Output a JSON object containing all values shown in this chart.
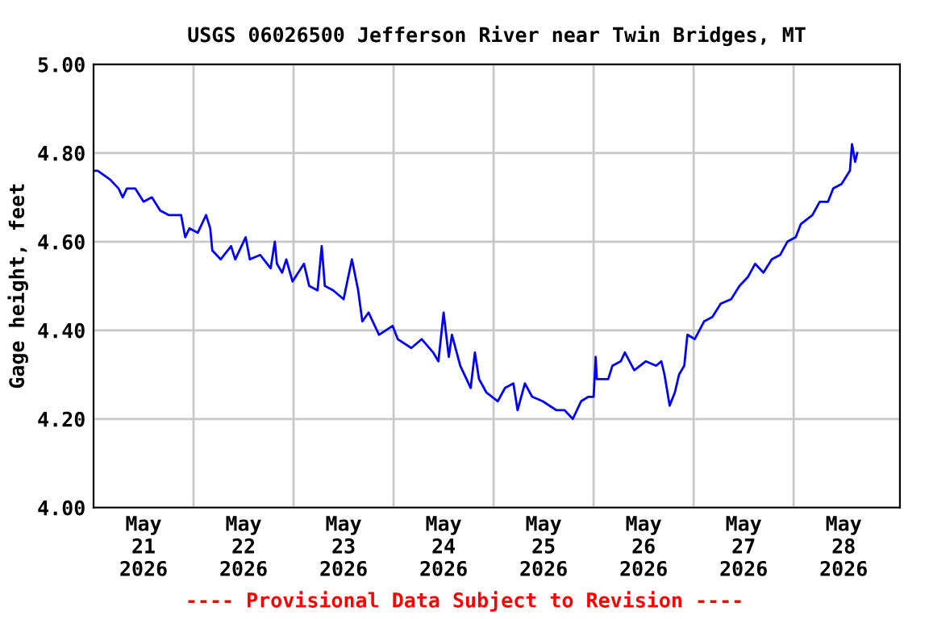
{
  "chart_data": {
    "type": "line",
    "title": "USGS 06026500 Jefferson River near Twin Bridges, MT",
    "ylabel": "Gage height, feet",
    "annotations": [
      "---- Provisional Data Subject to Revision ----"
    ],
    "series": [
      {
        "color": "#0000ff",
        "x": [
          "2026-05-21T00:00",
          "2026-05-21T01:00",
          "2026-05-21T04:00",
          "2026-05-21T06:00",
          "2026-05-21T07:00",
          "2026-05-21T08:00",
          "2026-05-21T10:00",
          "2026-05-21T12:00",
          "2026-05-21T14:00",
          "2026-05-21T16:00",
          "2026-05-21T18:00",
          "2026-05-21T21:00",
          "2026-05-21T22:00",
          "2026-05-21T23:00",
          "2026-05-22T01:00",
          "2026-05-22T03:00",
          "2026-05-22T04:00",
          "2026-05-22T04:30",
          "2026-05-22T06:30",
          "2026-05-22T09:00",
          "2026-05-22T10:00",
          "2026-05-22T12:30",
          "2026-05-22T13:30",
          "2026-05-22T16:00",
          "2026-05-22T18:30",
          "2026-05-22T19:30",
          "2026-05-22T20:00",
          "2026-05-22T21:15",
          "2026-05-22T22:15",
          "2026-05-22T23:45",
          "2026-05-23T02:30",
          "2026-05-23T03:45",
          "2026-05-23T05:45",
          "2026-05-23T06:45",
          "2026-05-23T07:30",
          "2026-05-23T09:30",
          "2026-05-23T12:00",
          "2026-05-23T14:00",
          "2026-05-23T15:30",
          "2026-05-23T16:30",
          "2026-05-23T18:00",
          "2026-05-23T20:30",
          "2026-05-23T23:45",
          "2026-05-24T01:00",
          "2026-05-24T04:15",
          "2026-05-24T06:45",
          "2026-05-24T09:30",
          "2026-05-24T10:45",
          "2026-05-24T12:00",
          "2026-05-24T13:15",
          "2026-05-24T14:00",
          "2026-05-24T16:00",
          "2026-05-24T18:30",
          "2026-05-24T19:30",
          "2026-05-24T20:30",
          "2026-05-24T22:15",
          "2026-05-25T01:00",
          "2026-05-25T02:45",
          "2026-05-25T04:45",
          "2026-05-25T05:45",
          "2026-05-25T07:30",
          "2026-05-25T09:15",
          "2026-05-25T11:45",
          "2026-05-25T15:00",
          "2026-05-25T17:00",
          "2026-05-25T19:00",
          "2026-05-25T21:00",
          "2026-05-25T22:45",
          "2026-05-26T00:00",
          "2026-05-26T00:30",
          "2026-05-26T00:45",
          "2026-05-26T03:30",
          "2026-05-26T04:30",
          "2026-05-26T06:30",
          "2026-05-26T07:30",
          "2026-05-26T09:45",
          "2026-05-26T12:30",
          "2026-05-26T15:00",
          "2026-05-26T16:15",
          "2026-05-26T17:00",
          "2026-05-26T18:15",
          "2026-05-26T19:30",
          "2026-05-26T20:30",
          "2026-05-26T21:45",
          "2026-05-26T22:30",
          "2026-05-27T00:15",
          "2026-05-27T02:30",
          "2026-05-27T04:30",
          "2026-05-27T06:30",
          "2026-05-27T09:00",
          "2026-05-27T11:00",
          "2026-05-27T13:00",
          "2026-05-27T14:45",
          "2026-05-27T16:45",
          "2026-05-27T18:45",
          "2026-05-27T20:45",
          "2026-05-27T22:30",
          "2026-05-28T00:30",
          "2026-05-28T01:45",
          "2026-05-28T04:30",
          "2026-05-28T06:15",
          "2026-05-28T08:15",
          "2026-05-28T09:30",
          "2026-05-28T11:30",
          "2026-05-28T13:30",
          "2026-05-28T14:00",
          "2026-05-28T14:45",
          "2026-05-28T15:15"
        ],
        "values": [
          4.76,
          4.76,
          4.74,
          4.72,
          4.7,
          4.72,
          4.72,
          4.69,
          4.7,
          4.67,
          4.66,
          4.66,
          4.61,
          4.63,
          4.62,
          4.66,
          4.63,
          4.58,
          4.56,
          4.59,
          4.56,
          4.61,
          4.56,
          4.57,
          4.54,
          4.6,
          4.55,
          4.53,
          4.56,
          4.51,
          4.55,
          4.5,
          4.49,
          4.59,
          4.5,
          4.49,
          4.47,
          4.56,
          4.49,
          4.42,
          4.44,
          4.39,
          4.41,
          4.38,
          4.36,
          4.38,
          4.35,
          4.33,
          4.44,
          4.34,
          4.39,
          4.32,
          4.27,
          4.35,
          4.29,
          4.26,
          4.24,
          4.27,
          4.28,
          4.22,
          4.28,
          4.25,
          4.24,
          4.22,
          4.22,
          4.2,
          4.24,
          4.25,
          4.25,
          4.34,
          4.29,
          4.29,
          4.32,
          4.33,
          4.35,
          4.31,
          4.33,
          4.32,
          4.33,
          4.3,
          4.23,
          4.26,
          4.3,
          4.32,
          4.39,
          4.38,
          4.42,
          4.43,
          4.46,
          4.47,
          4.5,
          4.52,
          4.55,
          4.53,
          4.56,
          4.57,
          4.6,
          4.61,
          4.64,
          4.66,
          4.69,
          4.69,
          4.72,
          4.73,
          4.76,
          4.82,
          4.78,
          4.8
        ]
      }
    ],
    "xlim": [
      "2026-05-21T00:00",
      "2026-05-29T01:30"
    ],
    "xticks": [
      {
        "value": "2026-05-21T12:00",
        "label": "May\n21\n2026"
      },
      {
        "value": "2026-05-22T00:00",
        "label": null
      },
      {
        "value": "2026-05-22T12:00",
        "label": "May\n22\n2026"
      },
      {
        "value": "2026-05-23T00:00",
        "label": null
      },
      {
        "value": "2026-05-23T12:00",
        "label": "May\n23\n2026"
      },
      {
        "value": "2026-05-24T00:00",
        "label": null
      },
      {
        "value": "2026-05-24T12:00",
        "label": "May\n24\n2026"
      },
      {
        "value": "2026-05-25T00:00",
        "label": null
      },
      {
        "value": "2026-05-25T12:00",
        "label": "May\n25\n2026"
      },
      {
        "value": "2026-05-26T00:00",
        "label": null
      },
      {
        "value": "2026-05-26T12:00",
        "label": "May\n26\n2026"
      },
      {
        "value": "2026-05-27T00:00",
        "label": null
      },
      {
        "value": "2026-05-27T12:00",
        "label": "May\n27\n2026"
      },
      {
        "value": "2026-05-28T00:00",
        "label": null
      },
      {
        "value": "2026-05-28T12:00",
        "label": "May\n28\n2026"
      }
    ],
    "ylim": [
      4.0,
      5.0
    ],
    "yticks": [
      {
        "value": 4.0,
        "label": "4.00"
      },
      {
        "value": 4.2,
        "label": "4.20"
      },
      {
        "value": 4.4,
        "label": "4.40"
      },
      {
        "value": 4.6,
        "label": "4.60"
      },
      {
        "value": 4.8,
        "label": "4.80"
      },
      {
        "value": 5.0,
        "label": "5.00"
      }
    ],
    "grid": true,
    "legend": false,
    "marker": "none",
    "line_style": "solid"
  }
}
